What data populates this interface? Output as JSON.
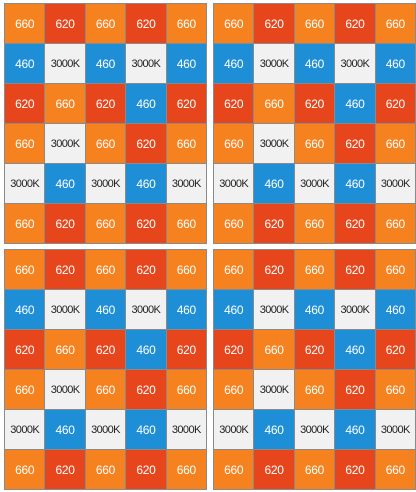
{
  "grid": [
    [
      "660",
      "620",
      "660",
      "620",
      "660"
    ],
    [
      "460",
      "3000K",
      "460",
      "3000K",
      "460"
    ],
    [
      "620",
      "660",
      "620",
      "460",
      "620"
    ],
    [
      "660",
      "3000K",
      "660",
      "620",
      "660"
    ],
    [
      "3000K",
      "460",
      "3000K",
      "460",
      "3000K"
    ],
    [
      "660",
      "620",
      "660",
      "620",
      "660"
    ]
  ],
  "panels": [
    {
      "id": "top-left"
    },
    {
      "id": "top-right"
    },
    {
      "id": "bottom-left"
    },
    {
      "id": "bottom-right"
    }
  ],
  "colors": {
    "660": "#f5821f",
    "620": "#e7461d",
    "460": "#1e8fd6",
    "3000K": "#f1f1f1",
    "divider": "#8a8a8a"
  }
}
